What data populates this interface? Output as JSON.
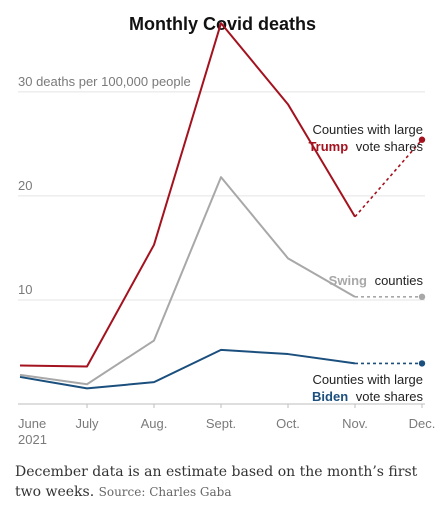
{
  "title": "Monthly Covid deaths",
  "chart_data": {
    "type": "line",
    "categories": [
      "June\n2021",
      "July",
      "Aug.",
      "Sept.",
      "Oct.",
      "Nov.",
      "Dec."
    ],
    "y_axis_label": "30 deaths per 100,000 people",
    "y_ticks": [
      10,
      20,
      30
    ],
    "ylim": [
      0,
      37
    ],
    "grid": true,
    "estimated_last_point": true,
    "series": [
      {
        "name": "Trump",
        "annotation": [
          "Counties with large",
          "Trump",
          "vote shares"
        ],
        "color": "#a3121e",
        "values": [
          3.7,
          3.6,
          15.3,
          36.6,
          28.8,
          18.0,
          25.4
        ]
      },
      {
        "name": "Swing",
        "annotation": [
          "Swing",
          "counties"
        ],
        "color": "#a8a8a8",
        "values": [
          2.8,
          1.9,
          6.1,
          21.8,
          14.0,
          10.3,
          10.3
        ]
      },
      {
        "name": "Biden",
        "annotation": [
          "Counties with large",
          "Biden",
          "vote shares"
        ],
        "color": "#1b4f7d",
        "values": [
          2.6,
          1.5,
          2.1,
          5.2,
          4.8,
          3.9,
          3.9
        ]
      }
    ]
  },
  "footnote": {
    "text": "December data is an estimate based on the month’s first two weeks.",
    "source": "Source: Charles Gaba"
  }
}
